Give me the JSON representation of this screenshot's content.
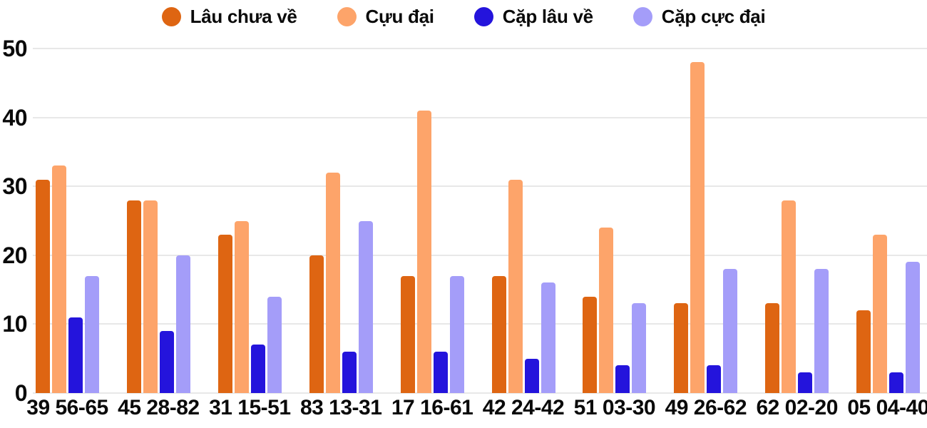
{
  "chart_data": {
    "type": "bar",
    "title": "",
    "xlabel": "",
    "ylabel": "",
    "categories": [
      "39 56-65",
      "45 28-82",
      "31 15-51",
      "83 13-31",
      "17 16-61",
      "42 24-42",
      "51 03-30",
      "49 26-62",
      "62 02-20",
      "05 04-40"
    ],
    "series": [
      {
        "name": "Lâu chưa về",
        "color": "#de6512",
        "values": [
          31,
          28,
          23,
          20,
          17,
          17,
          14,
          13,
          13,
          12
        ]
      },
      {
        "name": "Cựu đại",
        "color": "#fda46a",
        "values": [
          33,
          28,
          25,
          32,
          41,
          31,
          24,
          48,
          28,
          23
        ]
      },
      {
        "name": "Cặp lâu về",
        "color": "#2414dc",
        "values": [
          11,
          9,
          7,
          6,
          6,
          5,
          4,
          4,
          3,
          3
        ]
      },
      {
        "name": "Cặp cực đại",
        "color": "#a49df9",
        "values": [
          17,
          20,
          14,
          25,
          17,
          16,
          13,
          18,
          18,
          19
        ]
      }
    ],
    "ylim": [
      0,
      50
    ],
    "yticks": [
      0,
      10,
      20,
      30,
      40,
      50
    ],
    "grid": true,
    "legend_position": "top"
  },
  "colors": {
    "gridline": "#e8e8e8",
    "axis_text": "#0a0a0a",
    "background": "#ffffff"
  }
}
